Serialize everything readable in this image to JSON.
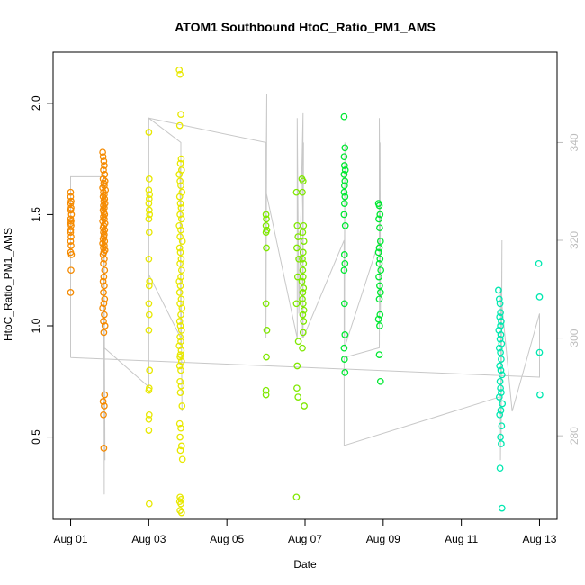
{
  "chart_data": {
    "type": "scatter",
    "title": "ATOM1 Southbound HtoC_Ratio_PM1_AMS",
    "xlabel": "Date",
    "ylabel": "HtoC_Ratio_PM1_AMS",
    "x_ticks": [
      "Aug 01",
      "Aug 03",
      "Aug 05",
      "Aug 07",
      "Aug 09",
      "Aug 11",
      "Aug 13"
    ],
    "x_tick_values": [
      1,
      3,
      5,
      7,
      9,
      11,
      13
    ],
    "xlim": [
      0.55,
      13.45
    ],
    "y_ticks": [
      "0.5",
      "1.0",
      "1.5",
      "2.0"
    ],
    "y_tick_values": [
      0.5,
      1.0,
      1.5,
      2.0
    ],
    "ylim": [
      0.13,
      2.23
    ],
    "right_axis": {
      "ticks": [
        "280",
        "300",
        "320",
        "340"
      ],
      "tick_values": [
        280,
        300,
        320,
        340
      ],
      "lim": [
        262.9,
        358.5
      ],
      "color": "#bdbdbd"
    },
    "grid": false,
    "legend": "none",
    "series": [
      {
        "color": "#f58a00",
        "x": [
          1.0,
          1.0,
          1.01,
          1.0,
          1.01,
          1.0,
          1.02,
          1.0,
          1.01,
          1.0,
          1.01,
          1.0,
          1.0,
          1.01,
          1.0,
          1.01,
          1.0,
          1.02,
          1.01,
          1.0,
          1.82,
          1.83,
          1.85,
          1.86,
          1.84,
          1.87,
          1.83,
          1.88,
          1.85,
          1.86,
          1.82,
          1.89,
          1.84,
          1.86,
          1.83,
          1.87,
          1.85,
          1.88,
          1.84,
          1.86,
          1.83,
          1.85,
          1.87,
          1.84,
          1.86,
          1.82,
          1.88,
          1.85,
          1.83,
          1.87,
          1.84,
          1.86,
          1.85,
          1.83,
          1.87,
          1.82,
          1.86,
          1.84,
          1.88,
          1.85,
          1.83,
          1.86,
          1.84,
          1.87,
          1.85,
          1.83,
          1.86,
          1.84,
          1.87,
          1.85,
          1.82,
          1.86,
          1.84,
          1.88,
          1.85,
          1.87,
          1.83,
          1.86,
          1.84,
          1.85
        ],
        "y": [
          1.6,
          1.58,
          1.56,
          1.55,
          1.53,
          1.52,
          1.5,
          1.48,
          1.47,
          1.46,
          1.45,
          1.43,
          1.42,
          1.4,
          1.38,
          1.36,
          1.33,
          1.32,
          1.25,
          1.15,
          1.78,
          1.76,
          1.74,
          1.72,
          1.7,
          1.68,
          1.66,
          1.65,
          1.64,
          1.63,
          1.62,
          1.61,
          1.6,
          1.59,
          1.58,
          1.57,
          1.56,
          1.55,
          1.54,
          1.53,
          1.52,
          1.51,
          1.5,
          1.49,
          1.48,
          1.47,
          1.46,
          1.45,
          1.44,
          1.43,
          1.42,
          1.41,
          1.4,
          1.39,
          1.38,
          1.37,
          1.36,
          1.35,
          1.34,
          1.33,
          1.32,
          1.3,
          1.28,
          1.25,
          1.22,
          1.2,
          1.18,
          1.15,
          1.12,
          1.1,
          1.08,
          1.05,
          1.02,
          1.0,
          0.97,
          0.69,
          0.66,
          0.64,
          0.6,
          0.45
        ]
      },
      {
        "color": "#e8e800",
        "x": [
          3.0,
          3.01,
          3.0,
          3.02,
          3.01,
          3.0,
          3.01,
          3.02,
          3.0,
          3.01,
          3.0,
          3.02,
          3.01,
          3.0,
          3.01,
          3.0,
          3.02,
          3.01,
          3.0,
          3.01,
          3.0,
          3.0,
          3.01,
          3.78,
          3.8,
          3.82,
          3.79,
          3.83,
          3.81,
          3.84,
          3.78,
          3.8,
          3.82,
          3.85,
          3.79,
          3.81,
          3.83,
          3.8,
          3.84,
          3.78,
          3.82,
          3.8,
          3.86,
          3.79,
          3.81,
          3.83,
          3.8,
          3.84,
          3.82,
          3.78,
          3.81,
          3.79,
          3.83,
          3.8,
          3.85,
          3.82,
          3.79,
          3.81,
          3.84,
          3.8,
          3.82,
          3.78,
          3.83,
          3.81,
          3.8,
          3.84,
          3.79,
          3.82,
          3.8,
          3.83,
          3.81,
          3.85,
          3.79,
          3.82,
          3.8,
          3.84,
          3.81,
          3.86,
          3.8,
          3.83,
          3.79,
          3.82,
          3.8,
          3.84
        ],
        "y": [
          1.87,
          1.66,
          1.61,
          1.59,
          1.57,
          1.55,
          1.52,
          1.5,
          1.48,
          1.42,
          1.3,
          1.2,
          1.18,
          1.1,
          1.05,
          0.98,
          0.8,
          0.72,
          0.71,
          0.6,
          0.58,
          0.53,
          0.2,
          2.15,
          2.13,
          1.95,
          1.9,
          1.75,
          1.73,
          1.7,
          1.68,
          1.65,
          1.63,
          1.6,
          1.58,
          1.55,
          1.53,
          1.5,
          1.48,
          1.45,
          1.43,
          1.4,
          1.38,
          1.35,
          1.33,
          1.3,
          1.28,
          1.25,
          1.22,
          1.2,
          1.18,
          1.15,
          1.12,
          1.1,
          1.08,
          1.05,
          1.02,
          1.0,
          0.98,
          0.95,
          0.93,
          0.91,
          0.89,
          0.87,
          0.86,
          0.84,
          0.82,
          0.8,
          0.75,
          0.73,
          0.7,
          0.64,
          0.56,
          0.54,
          0.5,
          0.46,
          0.44,
          0.4,
          0.23,
          0.22,
          0.21,
          0.2,
          0.17,
          0.16
        ]
      },
      {
        "color": "#7fe800",
        "x": [
          6.0,
          6.01,
          6.0,
          6.02,
          6.0,
          6.01,
          6.0,
          6.02,
          6.01,
          6.0,
          6.0,
          6.78,
          6.8,
          6.82,
          6.79,
          6.84,
          6.81,
          6.78,
          6.83,
          6.8,
          6.79,
          6.82,
          6.78,
          6.92,
          6.95,
          6.93,
          6.96,
          6.94,
          6.97,
          6.95,
          6.93,
          6.96,
          6.94,
          6.95,
          6.92,
          6.96,
          6.94,
          6.93,
          6.95,
          6.97,
          6.94,
          6.96,
          6.95,
          6.93,
          6.98
        ],
        "y": [
          1.5,
          1.48,
          1.45,
          1.43,
          1.42,
          1.35,
          1.1,
          0.98,
          0.86,
          0.71,
          0.69,
          1.6,
          1.45,
          1.4,
          1.35,
          1.3,
          1.22,
          1.1,
          0.93,
          0.82,
          0.72,
          0.68,
          0.23,
          1.66,
          1.65,
          1.6,
          1.45,
          1.42,
          1.38,
          1.33,
          1.3,
          1.28,
          1.25,
          1.22,
          1.2,
          1.17,
          1.15,
          1.12,
          1.1,
          1.07,
          1.05,
          1.02,
          0.97,
          0.9,
          0.64
        ]
      },
      {
        "color": "#00e832",
        "x": [
          8.0,
          8.02,
          8.0,
          8.01,
          8.03,
          8.0,
          8.02,
          8.01,
          8.0,
          8.02,
          8.01,
          8.0,
          8.03,
          8.01,
          8.02,
          8.0,
          8.01,
          8.02,
          8.0,
          8.01,
          8.02,
          8.88,
          8.9,
          8.92,
          8.89,
          8.91,
          8.93,
          8.9,
          8.88,
          8.92,
          8.9,
          8.94,
          8.89,
          8.91,
          8.93,
          8.9,
          8.92,
          8.88,
          8.91,
          8.9,
          8.93
        ],
        "y": [
          1.94,
          1.8,
          1.76,
          1.72,
          1.7,
          1.68,
          1.65,
          1.63,
          1.6,
          1.58,
          1.55,
          1.5,
          1.45,
          1.32,
          1.28,
          1.25,
          1.1,
          0.96,
          0.9,
          0.85,
          0.79,
          1.55,
          1.54,
          1.5,
          1.48,
          1.44,
          1.38,
          1.35,
          1.33,
          1.3,
          1.28,
          1.25,
          1.22,
          1.18,
          1.15,
          1.12,
          1.05,
          1.03,
          1.0,
          0.87,
          0.75
        ]
      },
      {
        "color": "#00e8b0",
        "x": [
          11.95,
          11.97,
          11.99,
          12.0,
          11.98,
          12.02,
          12.0,
          11.96,
          12.01,
          11.99,
          12.03,
          11.97,
          12.0,
          12.02,
          11.98,
          12.01,
          12.04,
          11.99,
          12.0,
          12.02,
          11.97,
          12.05,
          12.01,
          11.98,
          12.03,
          12.0,
          12.02,
          11.99,
          12.04,
          12.98,
          13.0,
          13.0,
          13.01
        ],
        "y": [
          1.16,
          1.12,
          1.1,
          1.06,
          1.04,
          1.02,
          1.0,
          0.98,
          0.96,
          0.94,
          0.92,
          0.9,
          0.88,
          0.85,
          0.82,
          0.8,
          0.78,
          0.75,
          0.72,
          0.7,
          0.68,
          0.65,
          0.62,
          0.6,
          0.55,
          0.5,
          0.47,
          0.36,
          0.18,
          1.28,
          1.13,
          0.88,
          0.69
        ]
      }
    ],
    "background_trace": {
      "color": "#c8c8c8",
      "axis": "right",
      "x": [
        1.0,
        1.0,
        1.86,
        1.86,
        1.84,
        1.88,
        1.85,
        1.86,
        3.0,
        3.0,
        3.82,
        3.82,
        3.8,
        3.85,
        3.82,
        3.82,
        3.0,
        3.0,
        6.0,
        6.0,
        6.02,
        6.0,
        6.8,
        6.8,
        6.84,
        6.95,
        6.93,
        6.96,
        6.95,
        6.95,
        8.0,
        8.0,
        8.02,
        8.01,
        8.9,
        8.9,
        8.93,
        8.92,
        8.9,
        8.0,
        8.0,
        12.0,
        12.0,
        12.04,
        12.02,
        12.0,
        12.3,
        13.0,
        13.0,
        1.0
      ],
      "y": [
        296,
        333,
        333,
        268,
        336,
        275,
        330,
        298,
        290,
        345,
        340,
        298,
        335,
        285,
        312,
        300,
        313,
        345,
        340,
        300,
        350,
        330,
        300,
        345,
        305,
        346,
        300,
        340,
        310,
        300,
        320,
        300,
        340,
        298,
        320,
        345,
        305,
        340,
        298,
        296,
        278,
        288,
        275,
        320,
        280,
        310,
        285,
        305,
        292,
        296
      ]
    }
  }
}
